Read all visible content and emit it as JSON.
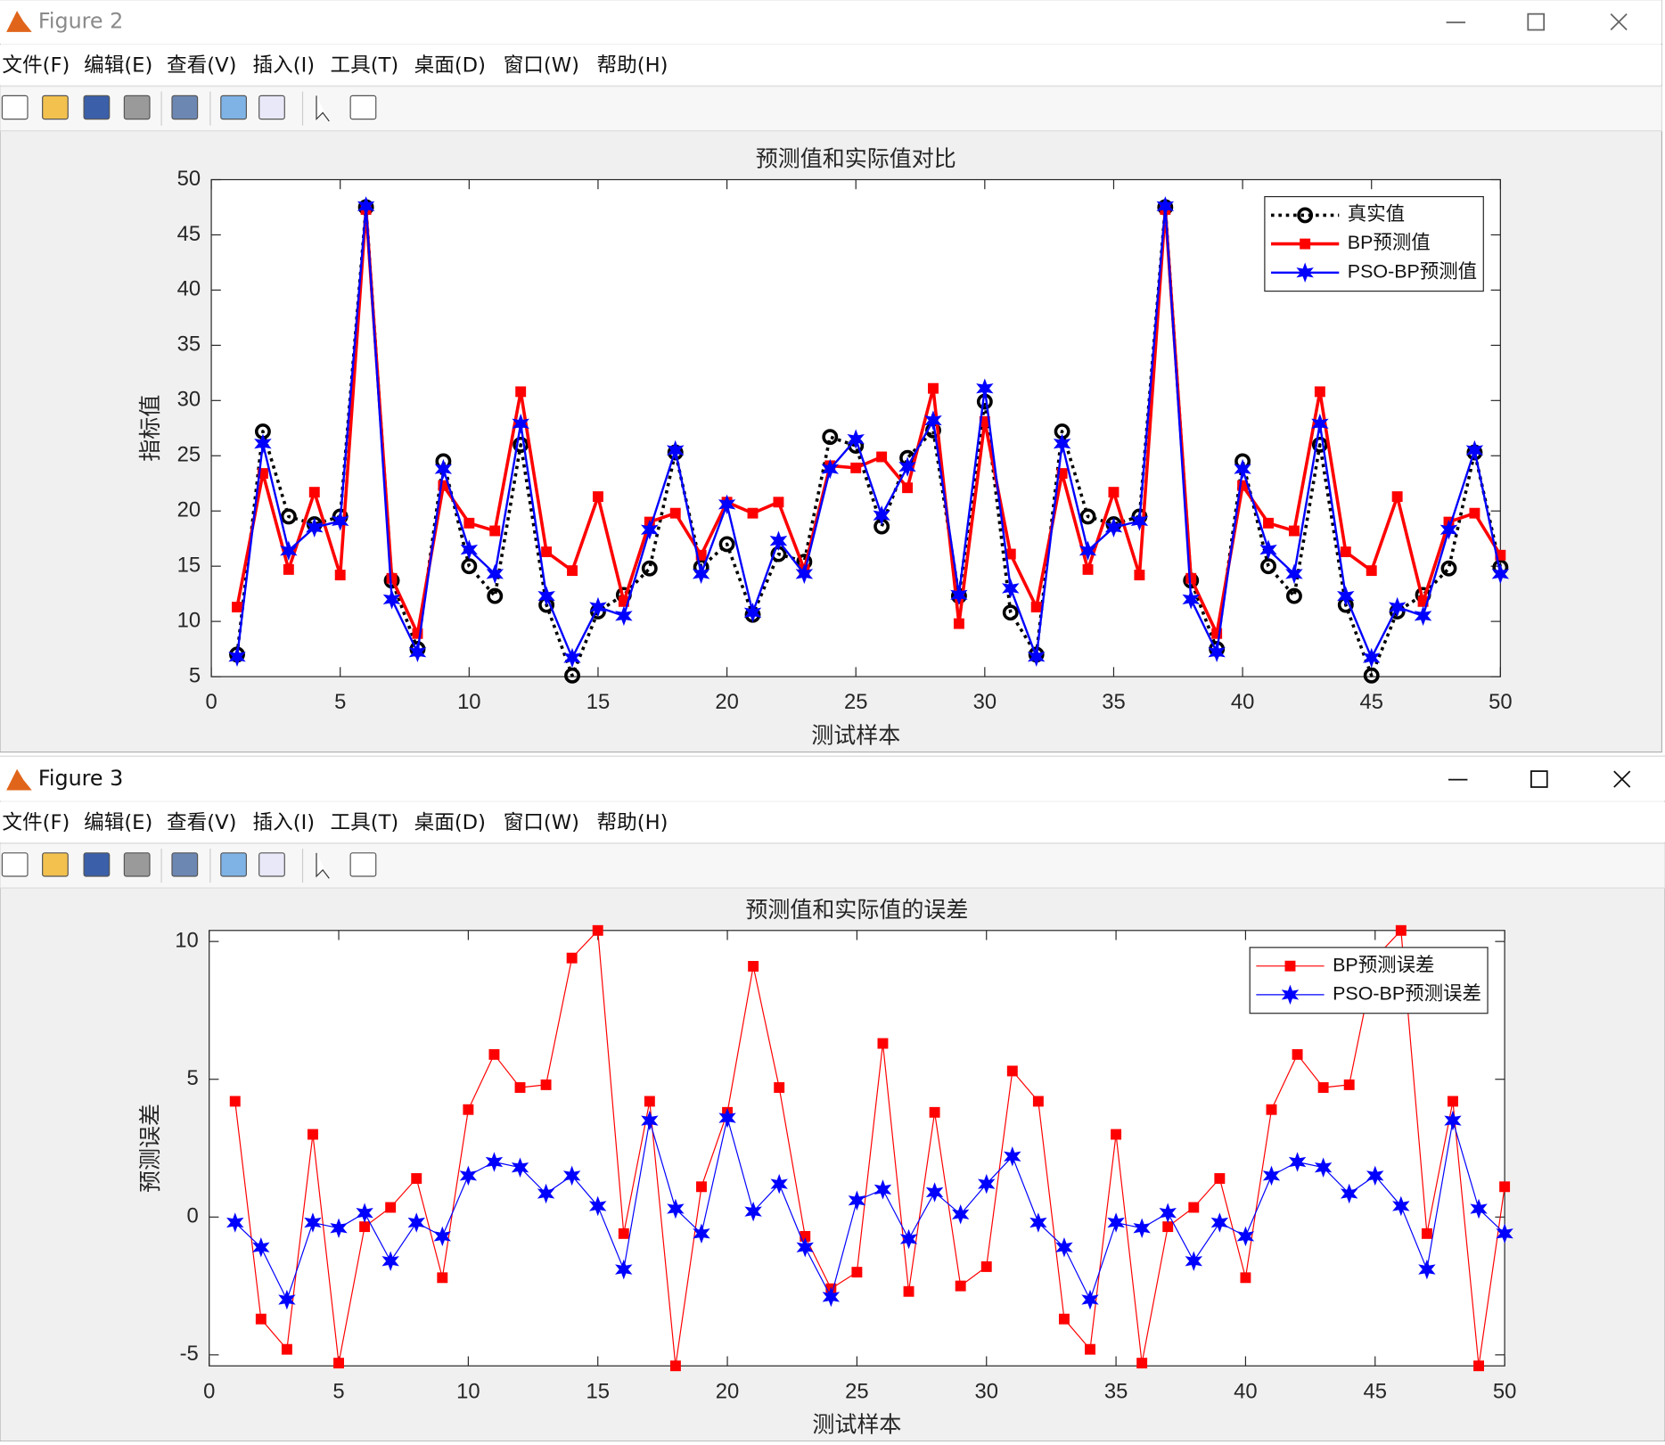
{
  "windows": [
    {
      "title": "Figure 2",
      "menu": [
        "文件(F)",
        "编辑(E)",
        "查看(V)",
        "插入(I)",
        "工具(T)",
        "桌面(D)",
        "窗口(W)",
        "帮助(H)"
      ]
    },
    {
      "title": "Figure 3",
      "menu": [
        "文件(F)",
        "编辑(E)",
        "查看(V)",
        "插入(I)",
        "工具(T)",
        "桌面(D)",
        "窗口(W)",
        "帮助(H)"
      ]
    }
  ],
  "chart_data": [
    {
      "type": "line",
      "title": "预测值和实际值对比",
      "xlabel": "测试样本",
      "ylabel": "指标值",
      "x": [
        1,
        2,
        3,
        4,
        5,
        6,
        7,
        8,
        9,
        10,
        11,
        12,
        13,
        14,
        15,
        16,
        17,
        18,
        19,
        20,
        21,
        22,
        23,
        24,
        25,
        26,
        27,
        28,
        29,
        30,
        31,
        32,
        33,
        34,
        35,
        36,
        37,
        38,
        39,
        40,
        41,
        42,
        43,
        44,
        45,
        46,
        47,
        48,
        49,
        50
      ],
      "xlim": [
        0,
        50
      ],
      "ylim": [
        5,
        50
      ],
      "xticks": [
        0,
        5,
        10,
        15,
        20,
        25,
        30,
        35,
        40,
        45,
        50
      ],
      "yticks": [
        5,
        10,
        15,
        20,
        25,
        30,
        35,
        40,
        45,
        50
      ],
      "legend": "northeast",
      "series": [
        {
          "name": "真实值",
          "color": "#000000",
          "line_style": "dotted",
          "marker": "circle",
          "line_width": 3,
          "values": [
            7.0,
            27.2,
            19.5,
            18.8,
            19.5,
            47.5,
            13.7,
            7.5,
            24.5,
            15.0,
            12.3,
            26.0,
            11.5,
            5.1,
            10.9,
            12.4,
            14.8,
            25.3,
            14.9,
            17.0,
            10.6,
            16.1,
            15.4,
            26.7,
            25.9,
            18.6,
            24.8,
            27.3,
            12.3,
            29.9,
            10.8,
            7.0,
            27.2,
            19.5,
            18.8,
            19.5,
            47.5,
            13.7,
            7.5,
            24.5,
            15.0,
            12.3,
            26.0,
            11.5,
            5.1,
            10.9,
            12.4,
            14.8,
            25.3,
            14.9
          ]
        },
        {
          "name": "BP预测值",
          "color": "#ff0000",
          "line_style": "solid",
          "marker": "square",
          "line_width": 3,
          "values": [
            11.3,
            23.4,
            14.7,
            21.7,
            14.2,
            47.3,
            13.9,
            8.9,
            22.3,
            18.9,
            18.2,
            30.8,
            16.3,
            14.6,
            21.3,
            11.8,
            19.0,
            19.8,
            16.0,
            20.8,
            19.8,
            20.8,
            14.7,
            24.1,
            23.9,
            24.9,
            22.1,
            31.1,
            9.8,
            28.1,
            16.1,
            11.3,
            23.4,
            14.7,
            21.7,
            14.2,
            47.3,
            13.9,
            8.9,
            22.3,
            18.9,
            18.2,
            30.8,
            16.3,
            14.6,
            21.3,
            11.8,
            19.0,
            19.8,
            16.0
          ]
        },
        {
          "name": "PSO-BP预测值",
          "color": "#0000ff",
          "line_style": "solid",
          "marker": "star",
          "line_width": 2,
          "values": [
            6.8,
            26.1,
            16.4,
            18.5,
            19.1,
            47.6,
            12.0,
            7.2,
            23.8,
            16.5,
            14.3,
            27.9,
            12.3,
            6.7,
            11.3,
            10.5,
            18.3,
            25.5,
            14.3,
            20.6,
            10.8,
            17.3,
            14.3,
            23.8,
            26.5,
            19.6,
            24.0,
            28.2,
            12.4,
            31.1,
            13.0,
            6.8,
            26.1,
            16.4,
            18.5,
            19.1,
            47.6,
            12.0,
            7.2,
            23.8,
            16.5,
            14.3,
            27.9,
            12.3,
            6.7,
            11.3,
            10.5,
            18.3,
            25.5,
            14.3
          ]
        }
      ]
    },
    {
      "type": "line",
      "title": "预测值和实际值的误差",
      "xlabel": "测试样本",
      "ylabel": "预测误差",
      "x": [
        1,
        2,
        3,
        4,
        5,
        6,
        7,
        8,
        9,
        10,
        11,
        12,
        13,
        14,
        15,
        16,
        17,
        18,
        19,
        20,
        21,
        22,
        23,
        24,
        25,
        26,
        27,
        28,
        29,
        30,
        31,
        32,
        33,
        34,
        35,
        36,
        37,
        38,
        39,
        40,
        41,
        42,
        43,
        44,
        45,
        46,
        47,
        48,
        49,
        50
      ],
      "xlim": [
        0,
        50
      ],
      "ylim": [
        -5.4,
        10.4
      ],
      "xticks": [
        0,
        5,
        10,
        15,
        20,
        25,
        30,
        35,
        40,
        45,
        50
      ],
      "yticks": [
        -5,
        0,
        5,
        10
      ],
      "legend": "northeast",
      "series": [
        {
          "name": "BP预测误差",
          "color": "#ff0000",
          "line_style": "solid",
          "marker": "square",
          "line_width": 1,
          "values": [
            4.2,
            -3.7,
            -4.8,
            3.0,
            -5.3,
            -0.35,
            0.35,
            1.4,
            -2.2,
            3.9,
            5.9,
            4.7,
            4.8,
            9.4,
            10.4,
            -0.6,
            4.2,
            -5.4,
            1.1,
            3.8,
            9.1,
            4.7,
            -0.7,
            -2.6,
            -2.0,
            6.3,
            -2.7,
            3.8,
            -2.5,
            -1.8,
            5.3,
            4.2,
            -3.7,
            -4.8,
            3.0,
            -5.3,
            -0.35,
            0.35,
            1.4,
            -2.2,
            3.9,
            5.9,
            4.7,
            4.8,
            9.4,
            10.4,
            -0.6,
            4.2,
            -5.4,
            1.1
          ]
        },
        {
          "name": "PSO-BP预测误差",
          "color": "#0000ff",
          "line_style": "solid",
          "marker": "star",
          "line_width": 1,
          "values": [
            -0.2,
            -1.1,
            -3.0,
            -0.2,
            -0.4,
            0.15,
            -1.6,
            -0.2,
            -0.7,
            1.5,
            2.0,
            1.8,
            0.85,
            1.5,
            0.4,
            -1.9,
            3.5,
            0.3,
            -0.6,
            3.6,
            0.2,
            1.2,
            -1.1,
            -2.9,
            0.6,
            1.0,
            -0.8,
            0.9,
            0.1,
            1.2,
            2.2,
            -0.2,
            -1.1,
            -3.0,
            -0.2,
            -0.4,
            0.15,
            -1.6,
            -0.2,
            -0.7,
            1.5,
            2.0,
            1.8,
            0.85,
            1.5,
            0.4,
            -1.9,
            3.5,
            0.3,
            -0.6
          ]
        }
      ]
    }
  ]
}
